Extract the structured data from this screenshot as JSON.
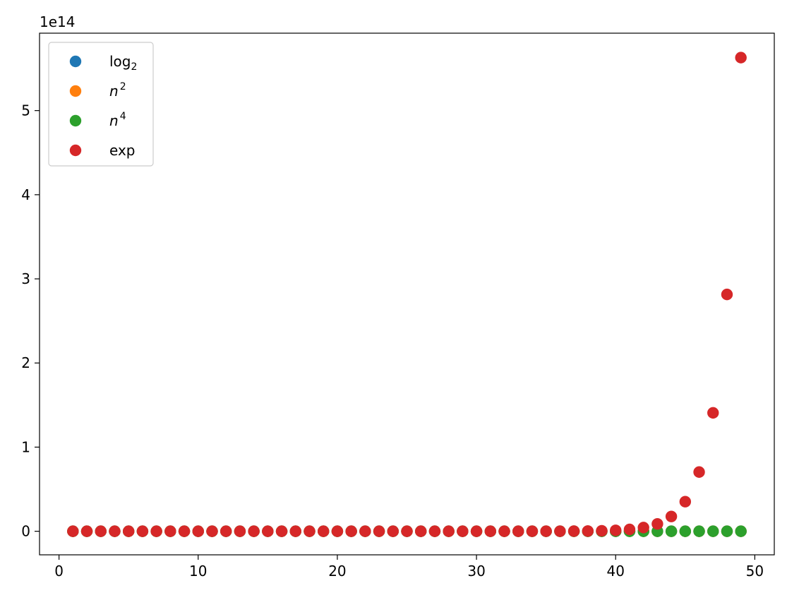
{
  "chart_data": {
    "type": "scatter",
    "title": "",
    "xlabel": "",
    "ylabel": "",
    "offset_text": "1e14",
    "x": [
      1,
      2,
      3,
      4,
      5,
      6,
      7,
      8,
      9,
      10,
      11,
      12,
      13,
      14,
      15,
      16,
      17,
      18,
      19,
      20,
      21,
      22,
      23,
      24,
      25,
      26,
      27,
      28,
      29,
      30,
      31,
      32,
      33,
      34,
      35,
      36,
      37,
      38,
      39,
      40,
      41,
      42,
      43,
      44,
      45,
      46,
      47,
      48,
      49
    ],
    "xlim": [
      -1.4,
      51.4
    ],
    "ylim": [
      -0.28,
      5.92
    ],
    "y_scale_note": "y values in units of 1e14",
    "xticks": [
      0,
      10,
      20,
      30,
      40,
      50
    ],
    "xtick_labels": [
      "0",
      "10",
      "20",
      "30",
      "40",
      "50"
    ],
    "yticks": [
      0,
      1,
      2,
      3,
      4,
      5
    ],
    "ytick_labels": [
      "0",
      "1",
      "2",
      "3",
      "4",
      "5"
    ],
    "grid": false,
    "legend_position": "top-left",
    "series": [
      {
        "name": "log",
        "name_sub": "2",
        "color": "#1f77b4",
        "formula": "log2(n)"
      },
      {
        "name": "n",
        "name_sup": "2",
        "color": "#ff7f0e",
        "formula": "n^2"
      },
      {
        "name": "n",
        "name_sup": "4",
        "color": "#2ca02c",
        "formula": "n^4"
      },
      {
        "name": "exp",
        "color": "#d62728",
        "formula": "2^n"
      }
    ]
  }
}
